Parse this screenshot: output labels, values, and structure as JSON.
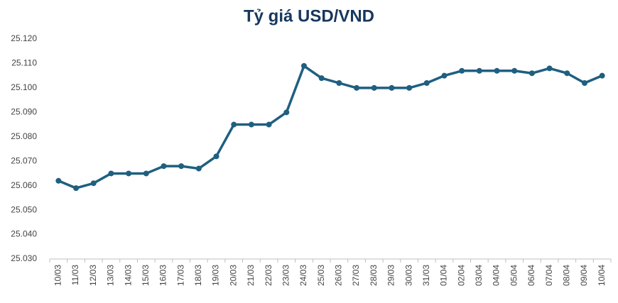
{
  "chart_data": {
    "type": "line",
    "title": "Tỷ giá USD/VND",
    "categories": [
      "10/03",
      "11/03",
      "12/03",
      "13/03",
      "14/03",
      "15/03",
      "16/03",
      "17/03",
      "18/03",
      "19/03",
      "20/03",
      "21/03",
      "22/03",
      "23/03",
      "24/03",
      "25/03",
      "26/03",
      "27/03",
      "28/03",
      "29/03",
      "30/03",
      "31/03",
      "01/04",
      "02/04",
      "03/04",
      "04/04",
      "05/04",
      "06/04",
      "07/04",
      "08/04",
      "09/04",
      "10/04"
    ],
    "values": [
      25062,
      25059,
      25061,
      25065,
      25065,
      25065,
      25068,
      25068,
      25067,
      25072,
      25085,
      25085,
      25085,
      25090,
      25109,
      25104,
      25102,
      25100,
      25100,
      25100,
      25100,
      25102,
      25105,
      25107,
      25107,
      25107,
      25107,
      25106,
      25108,
      25106,
      25102,
      25105
    ],
    "color": "#1f5f80",
    "ylim": [
      25030,
      25120
    ],
    "yticks": [
      {
        "value": 25030,
        "label": "25.030"
      },
      {
        "value": 25040,
        "label": "25.040"
      },
      {
        "value": 25050,
        "label": "25.050"
      },
      {
        "value": 25060,
        "label": "25.060"
      },
      {
        "value": 25070,
        "label": "25.070"
      },
      {
        "value": 25080,
        "label": "25.080"
      },
      {
        "value": 25090,
        "label": "25.090"
      },
      {
        "value": 25100,
        "label": "25.100"
      },
      {
        "value": 25110,
        "label": "25.110"
      },
      {
        "value": 25120,
        "label": "25.120"
      }
    ]
  }
}
